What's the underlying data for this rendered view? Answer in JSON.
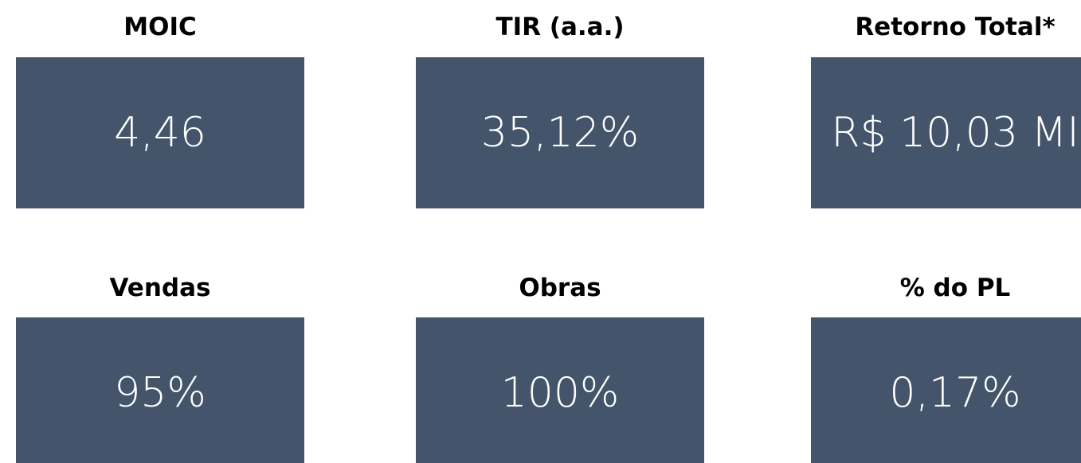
{
  "cards": [
    {
      "label": "MOIC",
      "value": "4,46"
    },
    {
      "label": "TIR (a.a.)",
      "value": "35,12%"
    },
    {
      "label": "Retorno Total*",
      "value": "R$ 10,03 MI"
    },
    {
      "label": "Vendas",
      "value": "95%"
    },
    {
      "label": "Obras",
      "value": "100%"
    },
    {
      "label": "% do PL",
      "value": "0,17%"
    }
  ]
}
